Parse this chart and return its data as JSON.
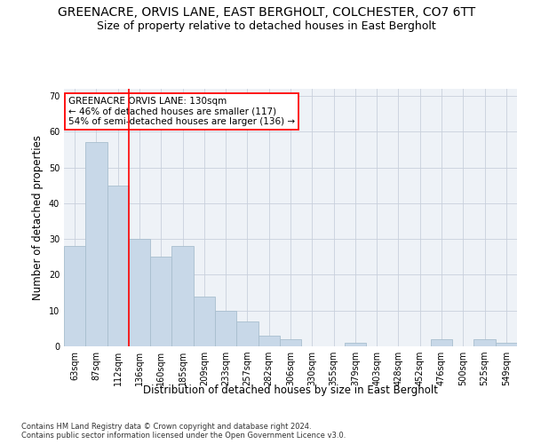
{
  "title": "GREENACRE, ORVIS LANE, EAST BERGHOLT, COLCHESTER, CO7 6TT",
  "subtitle": "Size of property relative to detached houses in East Bergholt",
  "xlabel": "Distribution of detached houses by size in East Bergholt",
  "ylabel": "Number of detached properties",
  "footnote": "Contains HM Land Registry data © Crown copyright and database right 2024.\nContains public sector information licensed under the Open Government Licence v3.0.",
  "categories": [
    "63sqm",
    "87sqm",
    "112sqm",
    "136sqm",
    "160sqm",
    "185sqm",
    "209sqm",
    "233sqm",
    "257sqm",
    "282sqm",
    "306sqm",
    "330sqm",
    "355sqm",
    "379sqm",
    "403sqm",
    "428sqm",
    "452sqm",
    "476sqm",
    "500sqm",
    "525sqm",
    "549sqm"
  ],
  "values": [
    28,
    57,
    45,
    30,
    25,
    28,
    14,
    10,
    7,
    3,
    2,
    0,
    0,
    1,
    0,
    0,
    0,
    2,
    0,
    2,
    1
  ],
  "bar_color": "#c8d8e8",
  "bar_edge_color": "#a8bece",
  "vline_x": 2.5,
  "vline_color": "red",
  "annotation_text": "GREENACRE ORVIS LANE: 130sqm\n← 46% of detached houses are smaller (117)\n54% of semi-detached houses are larger (136) →",
  "annotation_box_color": "white",
  "annotation_box_edge": "red",
  "ylim": [
    0,
    72
  ],
  "yticks": [
    0,
    10,
    20,
    30,
    40,
    50,
    60,
    70
  ],
  "bg_color": "#eef2f7",
  "grid_color": "#c8d0dc",
  "title_fontsize": 10,
  "subtitle_fontsize": 9,
  "xlabel_fontsize": 8.5,
  "ylabel_fontsize": 8.5,
  "tick_fontsize": 7,
  "annotation_fontsize": 7.5,
  "footnote_fontsize": 6
}
